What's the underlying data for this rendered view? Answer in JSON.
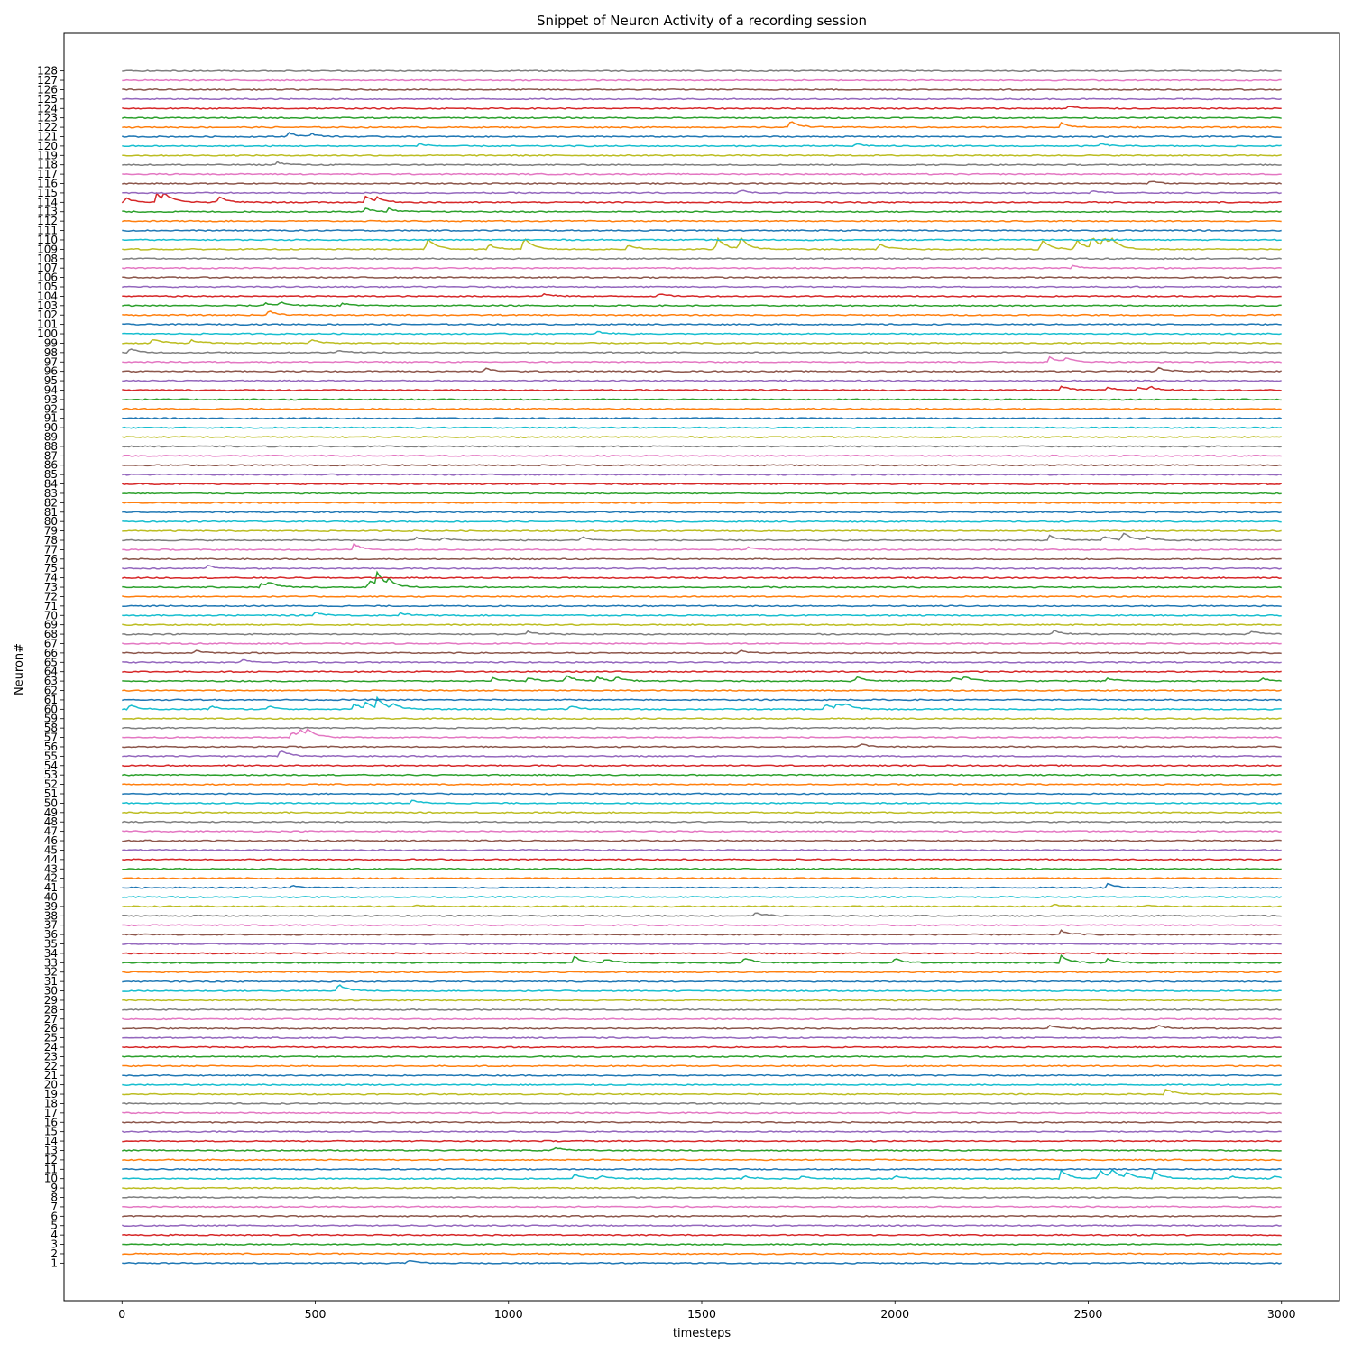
{
  "chart_data": {
    "type": "line",
    "title": "Snippet of Neuron Activity of a recording session",
    "xlabel": "timesteps",
    "ylabel": "Neuron#",
    "xlim": [
      -150,
      3150
    ],
    "ylim": [
      -3,
      132
    ],
    "x_ticks": [
      0,
      500,
      1000,
      1500,
      2000,
      2500,
      3000
    ],
    "x_tick_labels": [
      "0",
      "500",
      "1000",
      "1500",
      "2000",
      "2500",
      "3000"
    ],
    "y_ticks_count": 128,
    "x_range": [
      0,
      3000
    ],
    "neuron_count": 128,
    "grid": false,
    "legend": "none",
    "colors": [
      "#1f77b4",
      "#ff7f0e",
      "#2ca02c",
      "#d62728",
      "#9467bd",
      "#8c564b",
      "#e377c2",
      "#7f7f7f",
      "#bcbd22",
      "#17becf"
    ],
    "events": [
      {
        "neuron": 1,
        "t": [
          740
        ],
        "amp": [
          0.35
        ]
      },
      {
        "neuron": 10,
        "t": [
          1170,
          1240,
          1610,
          1760,
          2000,
          2430,
          2530,
          2560,
          2600,
          2670,
          2870,
          2980
        ],
        "amp": [
          0.45,
          0.3,
          0.3,
          0.3,
          0.3,
          0.9,
          0.9,
          0.8,
          0.6,
          0.8,
          0.3,
          0.3
        ]
      },
      {
        "neuron": 13,
        "t": [
          1120
        ],
        "amp": [
          0.35
        ]
      },
      {
        "neuron": 19,
        "t": [
          2700
        ],
        "amp": [
          0.55
        ]
      },
      {
        "neuron": 26,
        "t": [
          2400,
          2680
        ],
        "amp": [
          0.3,
          0.3
        ]
      },
      {
        "neuron": 30,
        "t": [
          560
        ],
        "amp": [
          0.7
        ]
      },
      {
        "neuron": 33,
        "t": [
          1170,
          1250,
          1610,
          2000,
          2430,
          2550
        ],
        "amp": [
          0.65,
          0.4,
          0.55,
          0.45,
          0.8,
          0.45
        ]
      },
      {
        "neuron": 36,
        "t": [
          2430
        ],
        "amp": [
          0.4
        ]
      },
      {
        "neuron": 38,
        "t": [
          1640
        ],
        "amp": [
          0.35
        ]
      },
      {
        "neuron": 39,
        "t": [
          760,
          2410,
          2650
        ],
        "amp": [
          0.2,
          0.2,
          0.2
        ]
      },
      {
        "neuron": 41,
        "t": [
          440,
          2550
        ],
        "amp": [
          0.2,
          0.45
        ]
      },
      {
        "neuron": 50,
        "t": [
          750
        ],
        "amp": [
          0.3
        ]
      },
      {
        "neuron": 55,
        "t": [
          410
        ],
        "amp": [
          0.7
        ]
      },
      {
        "neuron": 56,
        "t": [
          1910
        ],
        "amp": [
          0.3
        ]
      },
      {
        "neuron": 57,
        "t": [
          440,
          460,
          480
        ],
        "amp": [
          0.6,
          0.7,
          0.5
        ]
      },
      {
        "neuron": 60,
        "t": [
          20,
          230,
          380,
          600,
          630,
          660,
          700,
          1160,
          1820,
          1850,
          1870
        ],
        "amp": [
          0.45,
          0.35,
          0.4,
          0.6,
          0.6,
          1.0,
          0.5,
          0.4,
          0.5,
          0.5,
          0.4
        ]
      },
      {
        "neuron": 63,
        "t": [
          960,
          1050,
          1150,
          1230,
          1280,
          1900,
          2150,
          2180,
          2550,
          2950
        ],
        "amp": [
          0.3,
          0.35,
          0.6,
          0.4,
          0.4,
          0.5,
          0.45,
          0.4,
          0.3,
          0.3
        ]
      },
      {
        "neuron": 65,
        "t": [
          310
        ],
        "amp": [
          0.35
        ]
      },
      {
        "neuron": 66,
        "t": [
          190,
          1600
        ],
        "amp": [
          0.3,
          0.25
        ]
      },
      {
        "neuron": 68,
        "t": [
          1050,
          2410,
          2920
        ],
        "amp": [
          0.3,
          0.45,
          0.35
        ]
      },
      {
        "neuron": 70,
        "t": [
          500,
          720
        ],
        "amp": [
          0.35,
          0.25
        ]
      },
      {
        "neuron": 73,
        "t": [
          360,
          380,
          640,
          660,
          690
        ],
        "amp": [
          0.4,
          0.4,
          0.7,
          1.3,
          0.5
        ]
      },
      {
        "neuron": 75,
        "t": [
          220
        ],
        "amp": [
          0.35
        ]
      },
      {
        "neuron": 77,
        "t": [
          600,
          1620
        ],
        "amp": [
          0.6,
          0.3
        ]
      },
      {
        "neuron": 78,
        "t": [
          760,
          830,
          1190,
          2400,
          2540,
          2590,
          2650
        ],
        "amp": [
          0.3,
          0.25,
          0.35,
          0.5,
          0.45,
          0.8,
          0.3
        ]
      },
      {
        "neuron": 94,
        "t": [
          2430,
          2550,
          2630,
          2660
        ],
        "amp": [
          0.4,
          0.3,
          0.3,
          0.3
        ]
      },
      {
        "neuron": 96,
        "t": [
          940,
          2680
        ],
        "amp": [
          0.3,
          0.4
        ]
      },
      {
        "neuron": 97,
        "t": [
          2400,
          2440
        ],
        "amp": [
          0.5,
          0.4
        ]
      },
      {
        "neuron": 98,
        "t": [
          20,
          560
        ],
        "amp": [
          0.4,
          0.3
        ]
      },
      {
        "neuron": 99,
        "t": [
          80,
          180,
          490
        ],
        "amp": [
          0.45,
          0.3,
          0.4
        ]
      },
      {
        "neuron": 100,
        "t": [
          1230
        ],
        "amp": [
          0.25
        ]
      },
      {
        "neuron": 102,
        "t": [
          380
        ],
        "amp": [
          0.45
        ]
      },
      {
        "neuron": 103,
        "t": [
          370,
          410,
          570
        ],
        "amp": [
          0.3,
          0.35,
          0.25
        ]
      },
      {
        "neuron": 104,
        "t": [
          1090,
          1390
        ],
        "amp": [
          0.25,
          0.25
        ]
      },
      {
        "neuron": 107,
        "t": [
          2460
        ],
        "amp": [
          0.3
        ]
      },
      {
        "neuron": 109,
        "t": [
          790,
          950,
          1040,
          1310,
          1540,
          1600,
          1960,
          2380,
          2470,
          2510,
          2540,
          2560
        ],
        "amp": [
          1.2,
          0.5,
          1.2,
          0.5,
          1.2,
          1.2,
          0.6,
          1.0,
          1.0,
          1.2,
          1.0,
          0.7
        ]
      },
      {
        "neuron": 113,
        "t": [
          630,
          690
        ],
        "amp": [
          0.35,
          0.3
        ]
      },
      {
        "neuron": 114,
        "t": [
          10,
          90,
          110,
          250,
          630,
          660
        ],
        "amp": [
          0.45,
          0.9,
          0.7,
          0.6,
          0.7,
          0.35
        ]
      },
      {
        "neuron": 115,
        "t": [
          1600,
          2510
        ],
        "amp": [
          0.3,
          0.3
        ]
      },
      {
        "neuron": 116,
        "t": [
          2660
        ],
        "amp": [
          0.3
        ]
      },
      {
        "neuron": 118,
        "t": [
          400
        ],
        "amp": [
          0.3
        ]
      },
      {
        "neuron": 120,
        "t": [
          770,
          1900,
          2530
        ],
        "amp": [
          0.25,
          0.25,
          0.25
        ]
      },
      {
        "neuron": 121,
        "t": [
          430,
          490
        ],
        "amp": [
          0.45,
          0.3
        ]
      },
      {
        "neuron": 122,
        "t": [
          1730,
          2430
        ],
        "amp": [
          0.7,
          0.5
        ]
      },
      {
        "neuron": 124,
        "t": [
          2450
        ],
        "amp": [
          0.25
        ]
      }
    ]
  }
}
